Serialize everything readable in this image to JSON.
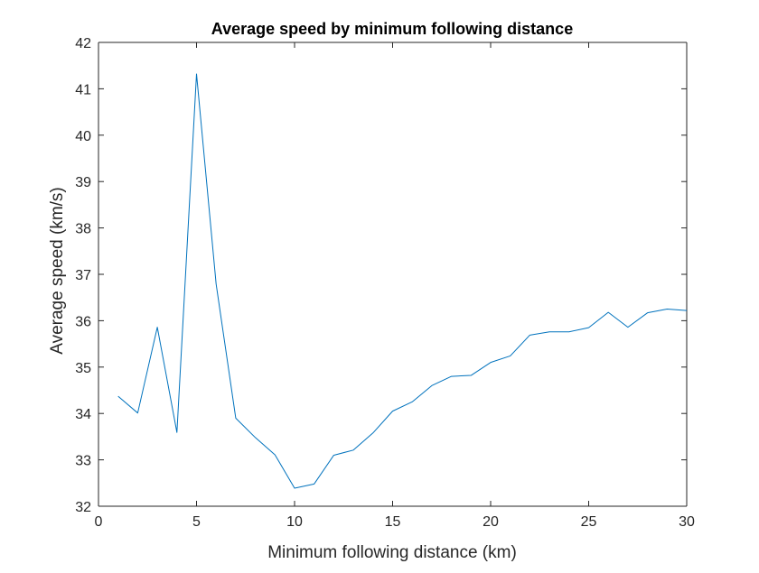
{
  "chart_data": {
    "type": "line",
    "title": "Average speed by minimum following distance",
    "xlabel": "Minimum following distance (km)",
    "ylabel": "Average speed (km/s)",
    "xlim": [
      0,
      30
    ],
    "ylim": [
      32,
      42
    ],
    "xticks": [
      0,
      5,
      10,
      15,
      20,
      25,
      30
    ],
    "yticks": [
      32,
      33,
      34,
      35,
      36,
      37,
      38,
      39,
      40,
      41,
      42
    ],
    "grid": false,
    "line_color": "#0072BD",
    "series": [
      {
        "x": [
          1,
          2,
          3,
          4,
          5,
          6,
          7,
          8,
          9,
          10,
          11,
          12,
          13,
          14,
          15,
          16,
          17,
          18,
          19,
          20,
          21,
          22,
          23,
          24,
          25,
          26,
          27,
          28,
          29,
          30
        ],
        "values": [
          34.37,
          34.01,
          35.86,
          33.59,
          41.32,
          36.79,
          33.9,
          33.48,
          33.11,
          32.39,
          32.48,
          33.1,
          33.21,
          33.58,
          34.05,
          34.25,
          34.6,
          34.8,
          34.82,
          35.1,
          35.24,
          35.69,
          35.76,
          35.76,
          35.85,
          36.18,
          35.86,
          36.17,
          36.25,
          36.22
        ]
      }
    ]
  }
}
